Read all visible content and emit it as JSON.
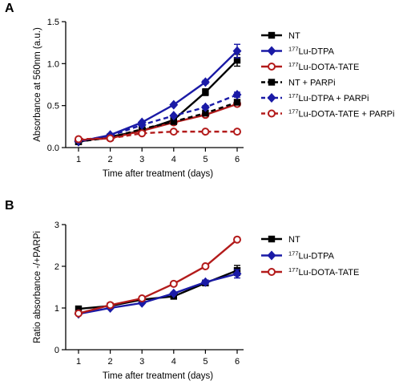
{
  "chart_data": [
    {
      "panel_label": "A",
      "type": "line",
      "xlabel": "Time after treatment (days)",
      "ylabel": "Absorbance at 560nm (a.u.)",
      "x": [
        1,
        2,
        3,
        4,
        5,
        6
      ],
      "xlim": [
        1,
        6
      ],
      "ylim": [
        0,
        1.5
      ],
      "yticks": [
        "0.0",
        "0.5",
        "1.0",
        "1.5"
      ],
      "xticks": [
        "1",
        "2",
        "3",
        "4",
        "5",
        "6"
      ],
      "legend_position": "right",
      "series": [
        {
          "name": "NT",
          "name_sup": "",
          "color": "#000000",
          "marker": "square",
          "dashed": false,
          "values": [
            0.07,
            0.13,
            0.2,
            0.33,
            0.66,
            1.04
          ],
          "errors": [
            0.01,
            0.01,
            0.01,
            0.02,
            0.04,
            0.07
          ]
        },
        {
          "name": "Lu-DTPA",
          "name_sup": "177",
          "color": "#1a1aa6",
          "marker": "diamond",
          "dashed": false,
          "values": [
            0.07,
            0.15,
            0.3,
            0.51,
            0.78,
            1.15
          ],
          "errors": [
            0.01,
            0.01,
            0.01,
            0.01,
            0.02,
            0.08
          ]
        },
        {
          "name": "Lu-DOTA-TATE",
          "name_sup": "177",
          "color": "#b31b1b",
          "marker": "circle",
          "dashed": false,
          "values": [
            0.09,
            0.11,
            0.2,
            0.3,
            0.39,
            0.52
          ],
          "errors": [
            0.01,
            0.01,
            0.01,
            0.01,
            0.02,
            0.02
          ]
        },
        {
          "name": "NT + PARPi",
          "name_sup": "",
          "color": "#000000",
          "marker": "square",
          "dashed": true,
          "values": [
            0.07,
            0.12,
            0.22,
            0.31,
            0.41,
            0.54
          ],
          "errors": [
            0.01,
            0.01,
            0.01,
            0.01,
            0.02,
            0.02
          ]
        },
        {
          "name": "Lu-DTPA + PARPi",
          "name_sup": "177",
          "color": "#1a1aa6",
          "marker": "diamond",
          "dashed": true,
          "values": [
            0.08,
            0.14,
            0.27,
            0.38,
            0.48,
            0.63
          ],
          "errors": [
            0.01,
            0.01,
            0.01,
            0.01,
            0.02,
            0.03
          ]
        },
        {
          "name": "Lu-DOTA-TATE + PARPi",
          "name_sup": "177",
          "color": "#b31b1b",
          "marker": "circle",
          "dashed": true,
          "values": [
            0.1,
            0.11,
            0.17,
            0.19,
            0.19,
            0.19
          ],
          "errors": [
            0.01,
            0.01,
            0.01,
            0.01,
            0.01,
            0.01
          ]
        }
      ]
    },
    {
      "panel_label": "B",
      "type": "line",
      "xlabel": "Time after treatment (days)",
      "ylabel": "Ratio absorbance -/+PARPi",
      "x": [
        1,
        2,
        3,
        4,
        5,
        6
      ],
      "xlim": [
        1,
        6
      ],
      "ylim": [
        0,
        3
      ],
      "yticks": [
        "0",
        "1",
        "2",
        "3"
      ],
      "xticks": [
        "1",
        "2",
        "3",
        "4",
        "5",
        "6"
      ],
      "legend_position": "right",
      "series": [
        {
          "name": "NT",
          "name_sup": "",
          "color": "#000000",
          "marker": "square",
          "dashed": false,
          "values": [
            0.98,
            1.05,
            1.2,
            1.28,
            1.6,
            1.9
          ],
          "errors": [
            0.02,
            0.02,
            0.03,
            0.03,
            0.05,
            0.12
          ]
        },
        {
          "name": "Lu-DTPA",
          "name_sup": "177",
          "color": "#1a1aa6",
          "marker": "diamond",
          "dashed": false,
          "values": [
            0.86,
            1.0,
            1.12,
            1.35,
            1.62,
            1.82
          ],
          "errors": [
            0.02,
            0.02,
            0.02,
            0.03,
            0.05,
            0.1
          ]
        },
        {
          "name": "Lu-DOTA-TATE",
          "name_sup": "177",
          "color": "#b31b1b",
          "marker": "circle",
          "dashed": false,
          "values": [
            0.87,
            1.07,
            1.23,
            1.58,
            2.0,
            2.64
          ],
          "errors": [
            0.02,
            0.02,
            0.03,
            0.03,
            0.03,
            0.03
          ]
        }
      ]
    }
  ]
}
